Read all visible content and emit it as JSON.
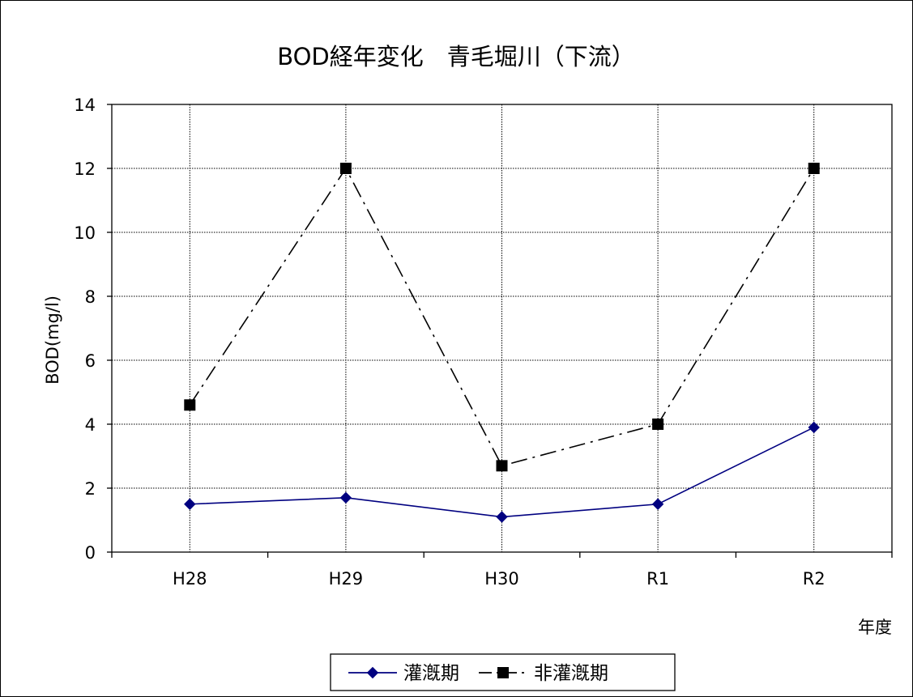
{
  "chart_data": {
    "type": "line",
    "title": "BOD経年変化　青毛堀川（下流）",
    "xlabel": "年度",
    "ylabel": "BOD(mg/l)",
    "categories": [
      "H28",
      "H29",
      "H30",
      "R1",
      "R2"
    ],
    "ylim": [
      0,
      14
    ],
    "yticks": [
      0,
      2,
      4,
      6,
      8,
      10,
      12,
      14
    ],
    "grid": true,
    "legend_position": "bottom",
    "series": [
      {
        "name": "灌漑期",
        "values": [
          1.5,
          1.7,
          1.1,
          1.5,
          3.9
        ],
        "color": "#000080",
        "marker": "diamond",
        "line": "solid"
      },
      {
        "name": "非灌漑期",
        "values": [
          4.6,
          12.0,
          2.7,
          4.0,
          12.0
        ],
        "color": "#000000",
        "marker": "square",
        "line": "dash-dot"
      }
    ]
  }
}
